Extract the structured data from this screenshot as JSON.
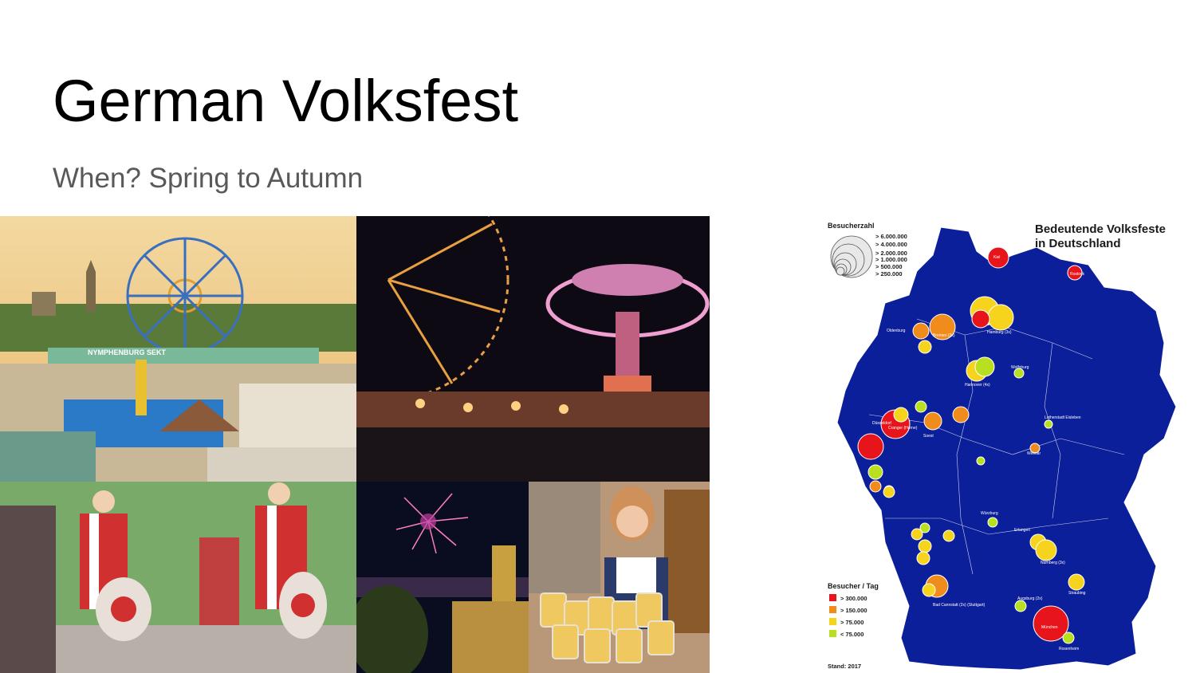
{
  "slide": {
    "title": "German Volksfest",
    "subtitle": "When? Spring to Autumn"
  },
  "photos": [
    {
      "id": "oktoberfest-panorama",
      "sign_text": "NYMPHENBURG SEKT"
    },
    {
      "id": "night-rides"
    },
    {
      "id": "marching-drummers"
    },
    {
      "id": "fireworks-castle"
    },
    {
      "id": "beer-waitress"
    }
  ],
  "map": {
    "title_line1": "Bedeutende Volksfeste",
    "title_line2": "in Deutschland",
    "visitors_legend_title": "Besucherzahl",
    "visitors_legend": [
      "> 6.000.000",
      "> 4.000.000",
      "> 2.000.000",
      "> 1.000.000",
      ">    500.000",
      ">    250.000"
    ],
    "per_day_legend_title": "Besucher / Tag",
    "per_day_legend": [
      {
        "label": "> 300.000",
        "color": "#e8141b"
      },
      {
        "label": "> 150.000",
        "color": "#f08c1c"
      },
      {
        "label": ">   75.000",
        "color": "#f6d41e"
      },
      {
        "label": "<   75.000",
        "color": "#b9e020"
      }
    ],
    "stand": "Stand: 2017",
    "colors": {
      "land": "#0c1f9a",
      "border": "#ffffff"
    },
    "cities": [
      "Kiel",
      "Rostock",
      "Hamburg (3x)",
      "Bremen (2x)",
      "Oldenburg",
      "Hannover (4x)",
      "Wolfsburg",
      "Düsseldorf",
      "Cranger (Herne)",
      "Soest",
      "Bad Cannstatt (2x) (Stuttgart)",
      "Nürnberg (3x)",
      "Straubing",
      "München",
      "Rosenheim",
      "Weimar",
      "Erlangen",
      "Würzburg",
      "Augsburg (2x)",
      "Lutherstadt Eisleben"
    ]
  }
}
